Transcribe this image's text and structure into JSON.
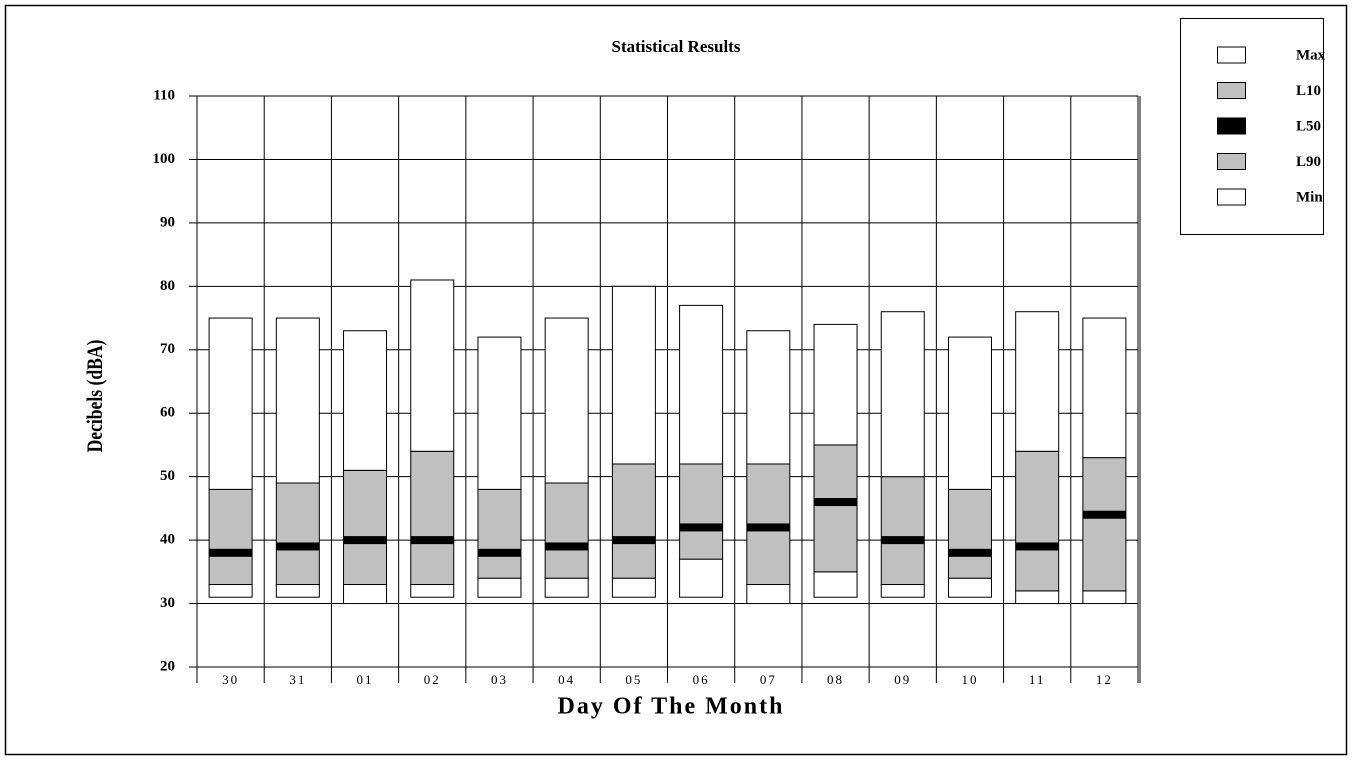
{
  "chart_data": {
    "type": "range-bar",
    "title": "Statistical Results",
    "x_label": "Day Of The Month",
    "y_label": "Decibels (dBA)",
    "categories": [
      "30",
      "31",
      "01",
      "02",
      "03",
      "04",
      "05",
      "06",
      "07",
      "08",
      "09",
      "10",
      "11",
      "12"
    ],
    "series": [
      {
        "name": "Max",
        "color": "#ffffff",
        "values": [
          75,
          75,
          73,
          81,
          72,
          75,
          80,
          77,
          73,
          74,
          76,
          72,
          76,
          75
        ]
      },
      {
        "name": "L10",
        "color": "#c0c0c0",
        "values": [
          48,
          49,
          51,
          54,
          48,
          49,
          52,
          52,
          52,
          55,
          50,
          48,
          54,
          53
        ]
      },
      {
        "name": "L50",
        "color": "#000000",
        "values": [
          38,
          39,
          40,
          40,
          38,
          39,
          40,
          42,
          42,
          46,
          40,
          38,
          39,
          44
        ]
      },
      {
        "name": "L90",
        "color": "#c0c0c0",
        "values": [
          33,
          33,
          33,
          33,
          34,
          34,
          34,
          37,
          33,
          35,
          33,
          34,
          32,
          32
        ]
      },
      {
        "name": "Min",
        "color": "#ffffff",
        "values": [
          31,
          31,
          30,
          31,
          31,
          31,
          31,
          31,
          30,
          31,
          31,
          31,
          30,
          30
        ]
      }
    ],
    "ylim": [
      20,
      110
    ],
    "yticks": [
      20,
      30,
      40,
      50,
      60,
      70,
      80,
      90,
      100,
      110
    ],
    "grid": true,
    "legend": "top-right"
  }
}
